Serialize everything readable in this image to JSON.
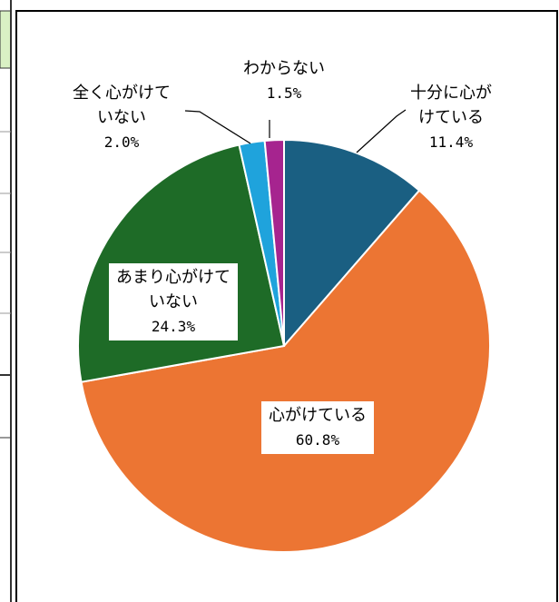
{
  "chart_data": {
    "type": "pie",
    "categories": [
      "十分に心が\nけている",
      "心がけている",
      "あまり心がけて\nいない",
      "全く心がけて\nいない",
      "わからない"
    ],
    "values": [
      11.4,
      60.8,
      24.3,
      2.0,
      1.5
    ],
    "value_labels": [
      "11.4%",
      "60.8%",
      "24.3%",
      "2.0%",
      "1.5%"
    ],
    "colors": [
      "#1a5f82",
      "#ec7533",
      "#1e6b27",
      "#1fa3dc",
      "#a6248f"
    ]
  }
}
